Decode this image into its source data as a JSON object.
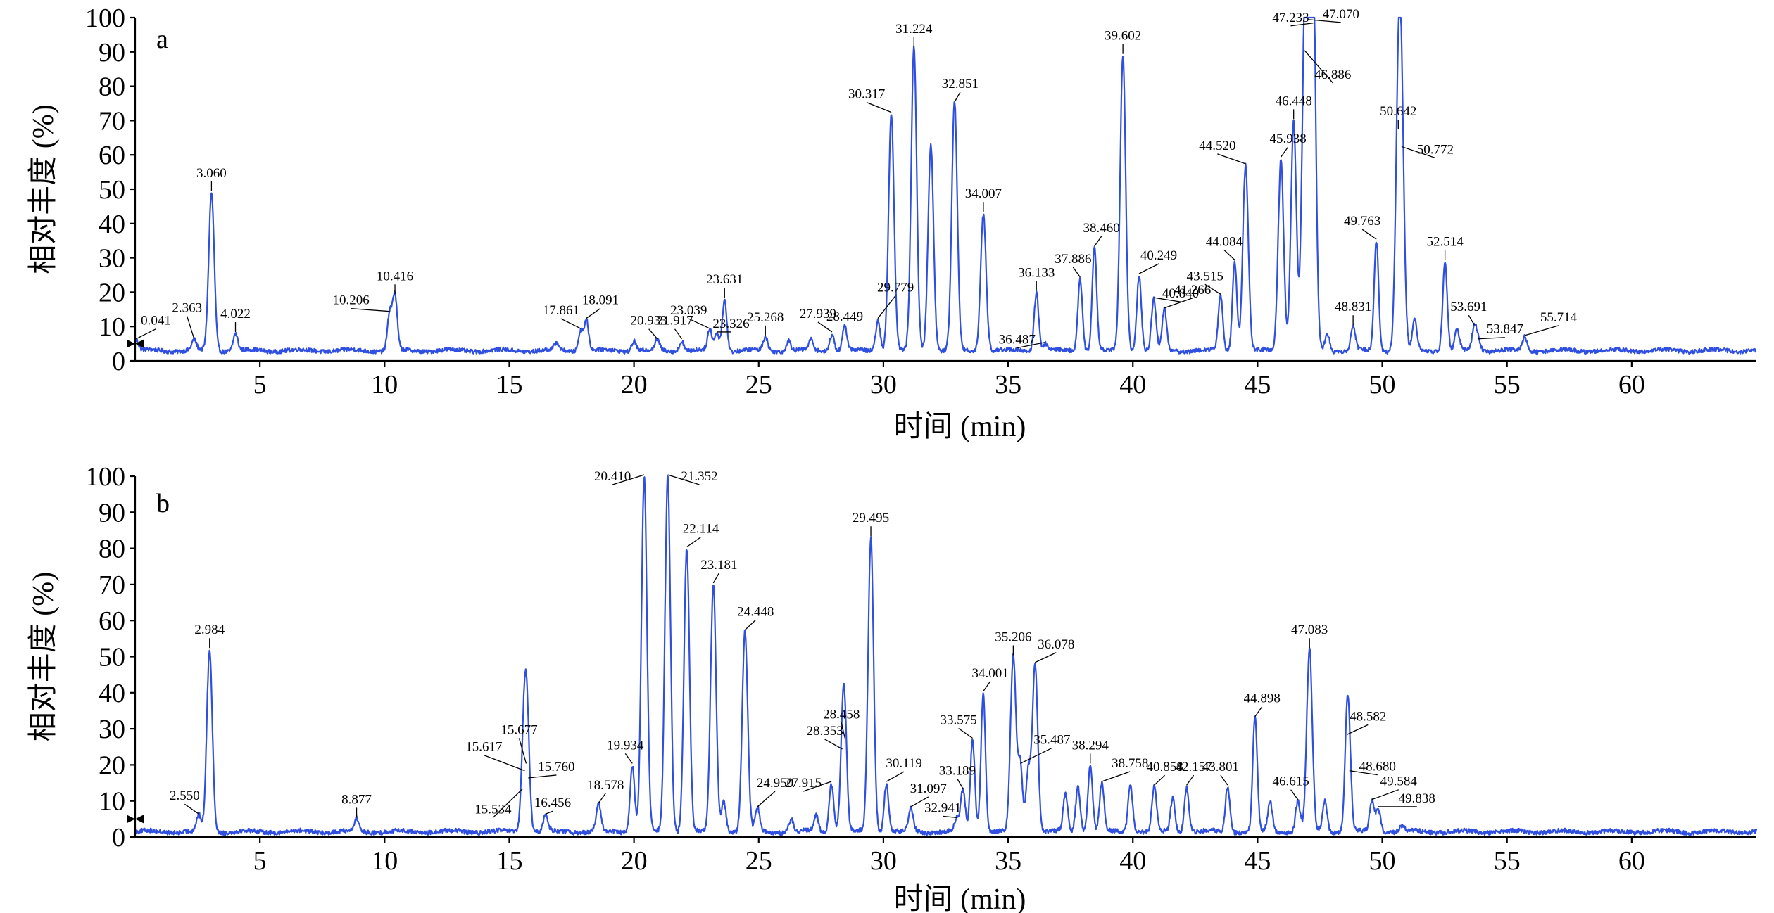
{
  "chart_data": [
    {
      "type": "line",
      "panel": "a",
      "xlabel": "时间 (min)",
      "ylabel": "相对丰度 (%)",
      "xlim": [
        0,
        65
      ],
      "ylim": [
        0,
        100
      ],
      "xticks": [
        5,
        10,
        15,
        20,
        25,
        30,
        35,
        40,
        45,
        50,
        55,
        60
      ],
      "yticks": [
        0,
        10,
        20,
        30,
        40,
        50,
        60,
        70,
        80,
        90,
        100
      ],
      "baseline": 3,
      "peaks": [
        {
          "x": 0.041,
          "y": 6,
          "label": "0.041"
        },
        {
          "x": 2.363,
          "y": 6,
          "label": "2.363"
        },
        {
          "x": 3.06,
          "y": 49,
          "label": "3.060"
        },
        {
          "x": 4.022,
          "y": 8,
          "label": "4.022"
        },
        {
          "x": 10.206,
          "y": 14,
          "label": "10.206"
        },
        {
          "x": 10.416,
          "y": 19,
          "label": "10.416"
        },
        {
          "x": 16.9,
          "y": 5
        },
        {
          "x": 17.861,
          "y": 9,
          "label": "17.861"
        },
        {
          "x": 18.091,
          "y": 12,
          "label": "18.091"
        },
        {
          "x": 20.0,
          "y": 6
        },
        {
          "x": 20.933,
          "y": 6,
          "label": "20.933"
        },
        {
          "x": 21.917,
          "y": 6,
          "label": "21.917"
        },
        {
          "x": 23.039,
          "y": 9,
          "label": "23.039"
        },
        {
          "x": 23.326,
          "y": 8,
          "label": "23.326"
        },
        {
          "x": 23.631,
          "y": 18,
          "label": "23.631"
        },
        {
          "x": 25.268,
          "y": 7,
          "label": "25.268"
        },
        {
          "x": 26.2,
          "y": 6
        },
        {
          "x": 27.1,
          "y": 6
        },
        {
          "x": 27.939,
          "y": 8,
          "label": "27.939"
        },
        {
          "x": 28.449,
          "y": 10,
          "label": "28.449"
        },
        {
          "x": 29.779,
          "y": 12,
          "label": "29.779"
        },
        {
          "x": 30.317,
          "y": 72,
          "label": "30.317"
        },
        {
          "x": 31.224,
          "y": 91,
          "label": "31.224"
        },
        {
          "x": 31.9,
          "y": 63
        },
        {
          "x": 32.851,
          "y": 75,
          "label": "32.851"
        },
        {
          "x": 34.007,
          "y": 43,
          "label": "34.007"
        },
        {
          "x": 36.133,
          "y": 20,
          "label": "36.133"
        },
        {
          "x": 36.487,
          "y": 5,
          "label": "36.487"
        },
        {
          "x": 37.886,
          "y": 24,
          "label": "37.886"
        },
        {
          "x": 38.46,
          "y": 33,
          "label": "38.460"
        },
        {
          "x": 39.602,
          "y": 89,
          "label": "39.602"
        },
        {
          "x": 40.249,
          "y": 25,
          "label": "40.249"
        },
        {
          "x": 40.84,
          "y": 18,
          "label": "40.840"
        },
        {
          "x": 41.266,
          "y": 15,
          "label": "41.266"
        },
        {
          "x": 43.515,
          "y": 19,
          "label": "43.515"
        },
        {
          "x": 44.084,
          "y": 29,
          "label": "44.084"
        },
        {
          "x": 44.52,
          "y": 57,
          "label": "44.520"
        },
        {
          "x": 45.938,
          "y": 59,
          "label": "45.938"
        },
        {
          "x": 46.448,
          "y": 70,
          "label": "46.448"
        },
        {
          "x": 46.886,
          "y": 90,
          "label": "46.886"
        },
        {
          "x": 47.07,
          "y": 99,
          "label": "47.070"
        },
        {
          "x": 47.233,
          "y": 98,
          "label": "47.233"
        },
        {
          "x": 47.8,
          "y": 8
        },
        {
          "x": 48.831,
          "y": 10,
          "label": "48.831"
        },
        {
          "x": 49.763,
          "y": 35,
          "label": "49.763"
        },
        {
          "x": 50.642,
          "y": 67,
          "label": "50.642"
        },
        {
          "x": 50.772,
          "y": 62,
          "label": "50.772"
        },
        {
          "x": 51.3,
          "y": 12
        },
        {
          "x": 52.514,
          "y": 29,
          "label": "52.514"
        },
        {
          "x": 53.0,
          "y": 9
        },
        {
          "x": 53.691,
          "y": 10,
          "label": "53.691"
        },
        {
          "x": 53.847,
          "y": 6,
          "label": "53.847"
        },
        {
          "x": 55.714,
          "y": 7,
          "label": "55.714"
        }
      ]
    },
    {
      "type": "line",
      "panel": "b",
      "xlabel": "时间 (min)",
      "ylabel": "相对丰度 (%)",
      "xlim": [
        0,
        65
      ],
      "ylim": [
        0,
        100
      ],
      "xticks": [
        5,
        10,
        15,
        20,
        25,
        30,
        35,
        40,
        45,
        50,
        55,
        60
      ],
      "yticks": [
        0,
        10,
        20,
        30,
        40,
        50,
        60,
        70,
        80,
        90,
        100
      ],
      "baseline": 1.5,
      "peaks": [
        {
          "x": 2.55,
          "y": 6,
          "label": "2.550"
        },
        {
          "x": 2.984,
          "y": 52,
          "label": "2.984"
        },
        {
          "x": 8.877,
          "y": 5,
          "label": "8.877"
        },
        {
          "x": 15.534,
          "y": 13,
          "label": "15.534"
        },
        {
          "x": 15.617,
          "y": 18,
          "label": "15.617"
        },
        {
          "x": 15.677,
          "y": 20,
          "label": "15.677"
        },
        {
          "x": 15.76,
          "y": 16,
          "label": "15.760"
        },
        {
          "x": 16.456,
          "y": 6,
          "label": "16.456"
        },
        {
          "x": 18.578,
          "y": 9,
          "label": "18.578"
        },
        {
          "x": 19.934,
          "y": 20,
          "label": "19.934"
        },
        {
          "x": 20.41,
          "y": 100,
          "label": "20.410"
        },
        {
          "x": 21.352,
          "y": 100,
          "label": "21.352"
        },
        {
          "x": 22.114,
          "y": 80,
          "label": "22.114"
        },
        {
          "x": 23.181,
          "y": 70,
          "label": "23.181"
        },
        {
          "x": 23.6,
          "y": 10
        },
        {
          "x": 24.448,
          "y": 57,
          "label": "24.448"
        },
        {
          "x": 24.95,
          "y": 8,
          "label": "24.950"
        },
        {
          "x": 26.3,
          "y": 5
        },
        {
          "x": 27.3,
          "y": 6
        },
        {
          "x": 27.915,
          "y": 15,
          "label": "27.915"
        },
        {
          "x": 28.353,
          "y": 24,
          "label": "28.353"
        },
        {
          "x": 28.458,
          "y": 27,
          "label": "28.458"
        },
        {
          "x": 29.495,
          "y": 83,
          "label": "29.495"
        },
        {
          "x": 30.119,
          "y": 15,
          "label": "30.119"
        },
        {
          "x": 31.097,
          "y": 8,
          "label": "31.097"
        },
        {
          "x": 32.941,
          "y": 5,
          "label": "32.941"
        },
        {
          "x": 33.189,
          "y": 13,
          "label": "33.189"
        },
        {
          "x": 33.575,
          "y": 27,
          "label": "33.575"
        },
        {
          "x": 34.001,
          "y": 40,
          "label": "34.001"
        },
        {
          "x": 35.206,
          "y": 50,
          "label": "35.206"
        },
        {
          "x": 35.487,
          "y": 20,
          "label": "35.487"
        },
        {
          "x": 35.8,
          "y": 18
        },
        {
          "x": 36.078,
          "y": 48,
          "label": "36.078"
        },
        {
          "x": 37.3,
          "y": 12
        },
        {
          "x": 37.8,
          "y": 14
        },
        {
          "x": 38.294,
          "y": 20,
          "label": "38.294"
        },
        {
          "x": 38.758,
          "y": 15,
          "label": "38.758"
        },
        {
          "x": 39.9,
          "y": 15
        },
        {
          "x": 40.858,
          "y": 14,
          "label": "40.858"
        },
        {
          "x": 41.6,
          "y": 11
        },
        {
          "x": 42.157,
          "y": 14,
          "label": "42.157"
        },
        {
          "x": 43.801,
          "y": 14,
          "label": "43.801"
        },
        {
          "x": 44.898,
          "y": 33,
          "label": "44.898"
        },
        {
          "x": 45.5,
          "y": 10
        },
        {
          "x": 46.615,
          "y": 10,
          "label": "46.615"
        },
        {
          "x": 47.083,
          "y": 52,
          "label": "47.083"
        },
        {
          "x": 47.7,
          "y": 10
        },
        {
          "x": 48.582,
          "y": 28,
          "label": "48.582"
        },
        {
          "x": 48.68,
          "y": 18,
          "label": "48.680"
        },
        {
          "x": 49.584,
          "y": 10,
          "label": "49.584"
        },
        {
          "x": 49.838,
          "y": 8,
          "label": "49.838"
        },
        {
          "x": 50.8,
          "y": 3
        }
      ]
    }
  ],
  "style": {
    "trace_color": "#2f4fe0",
    "axis_color": "#000000"
  }
}
